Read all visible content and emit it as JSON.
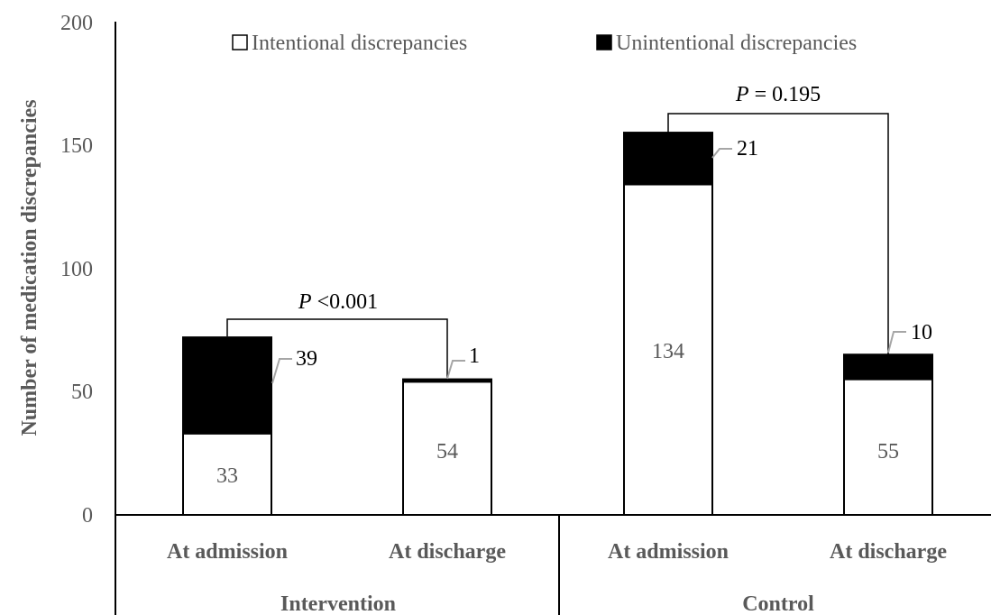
{
  "chart_data": {
    "type": "bar",
    "stacked": true,
    "title": "",
    "ylabel": "Number of medication discrepancies",
    "ylim": [
      0,
      200
    ],
    "yticks": [
      "0",
      "50",
      "100",
      "150",
      "200"
    ],
    "categories": [
      "At admission",
      "At discharge",
      "At admission",
      "At discharge"
    ],
    "groups": [
      {
        "label": "Intervention",
        "categories": [
          0,
          1
        ]
      },
      {
        "label": "Control",
        "categories": [
          2,
          3
        ]
      }
    ],
    "series": [
      {
        "name": "Intentional discrepancies",
        "color": "#ffffff",
        "values": [
          33,
          54,
          134,
          55
        ],
        "labels": [
          "33",
          "54",
          "134",
          "55"
        ]
      },
      {
        "name": "Unintentional discrepancies",
        "color": "#000000",
        "values": [
          39,
          1,
          21,
          10
        ],
        "labels": [
          "39",
          "1",
          "21",
          "10"
        ]
      }
    ],
    "annotations": [
      {
        "p_symbol": "P",
        "p_text": " <0.001",
        "between": [
          0,
          1
        ]
      },
      {
        "p_symbol": "P",
        "p_text": " = 0.195",
        "between": [
          2,
          3
        ]
      }
    ],
    "legend_position": "top",
    "grid": false
  }
}
